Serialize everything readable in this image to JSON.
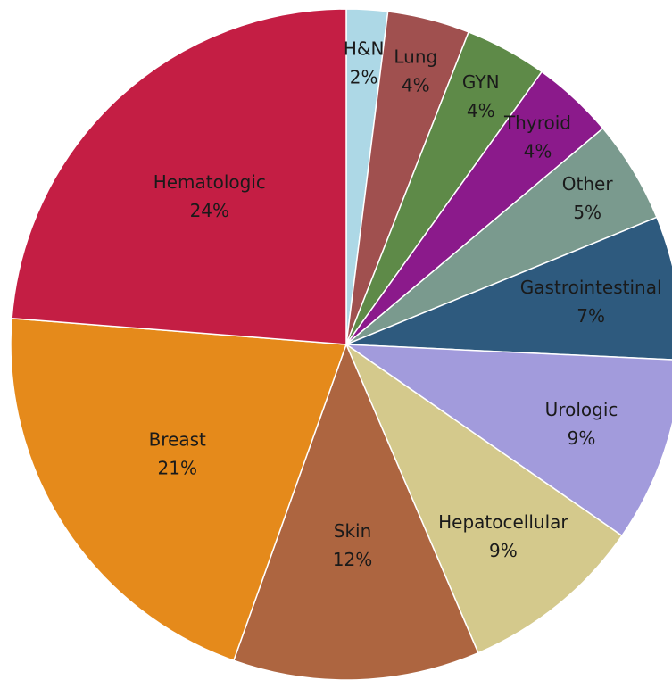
{
  "chart_data": {
    "type": "pie",
    "categories": [
      "H&N",
      "Lung",
      "GYN",
      "Thyroid",
      "Other",
      "Gastrointestinal",
      "Urologic",
      "Hepatocellular",
      "Skin",
      "Breast",
      "Hematologic"
    ],
    "values": [
      2,
      4,
      4,
      4,
      5,
      7,
      9,
      9,
      12,
      21,
      24
    ],
    "value_labels": [
      "2%",
      "4%",
      "4%",
      "4%",
      "5%",
      "7%",
      "9%",
      "9%",
      "12%",
      "21%",
      "24%"
    ],
    "colors": [
      "#add8e6",
      "#a0504f",
      "#5e8a48",
      "#8b1a8b",
      "#7a9a8e",
      "#2e5a7e",
      "#a29bdc",
      "#d4c98c",
      "#ad6540",
      "#e58a1b",
      "#c41e44"
    ]
  }
}
